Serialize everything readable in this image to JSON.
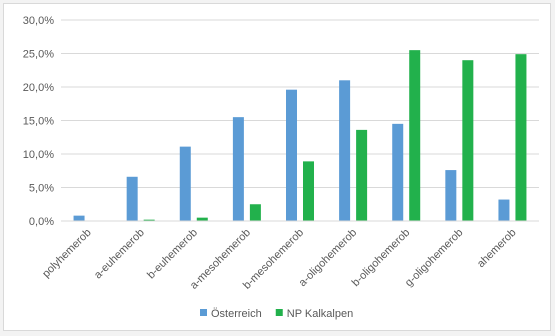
{
  "chart_data": {
    "type": "bar",
    "title": "",
    "xlabel": "",
    "ylabel": "",
    "categories": [
      "polyhemerob",
      "a-euhemerob",
      "b-euhemerob",
      "a-mesohemerob",
      "b-mesohemerob",
      "a-oligohemerob",
      "b-oligohemerob",
      "g-oligohemerob",
      "ahemerob"
    ],
    "series": [
      {
        "name": "Österreich",
        "color": "#5b9bd5",
        "values": [
          0.8,
          6.6,
          11.1,
          15.5,
          19.6,
          21.0,
          14.5,
          7.6,
          3.2
        ]
      },
      {
        "name": "NP Kalkalpen",
        "color": "#22b14c",
        "values": [
          0.0,
          0.2,
          0.5,
          2.5,
          8.9,
          13.6,
          25.5,
          24.0,
          24.9
        ]
      }
    ],
    "ylim": [
      0,
      30
    ],
    "yticks": [
      0,
      5,
      10,
      15,
      20,
      25,
      30
    ],
    "ytick_labels": [
      "0,0%",
      "5,0%",
      "10,0%",
      "15,0%",
      "20,0%",
      "25,0%",
      "30,0%"
    ],
    "grid": true,
    "legend_position": "bottom"
  }
}
